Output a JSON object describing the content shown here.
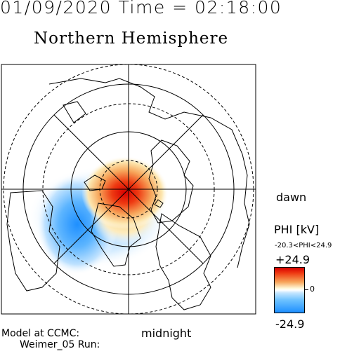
{
  "header": {
    "datetime": "01/09/2020 Time = 02:18:00",
    "hemisphere": "Northern Hemisphere"
  },
  "map": {
    "labels": {
      "dawn": "dawn",
      "midnight": "midnight"
    },
    "colors": {
      "positive": "#d80000",
      "negative": "#1e8fff",
      "zero": "#ffffff"
    }
  },
  "colorbar": {
    "title": "PHI [kV]",
    "range_text": "-20.3<PHI<24.9",
    "max": "+24.9",
    "min": "-24.9",
    "zero": "0"
  },
  "footer": {
    "model_line1": "Model at CCMC:",
    "model_line2": "Weimer_05 Run:"
  }
}
